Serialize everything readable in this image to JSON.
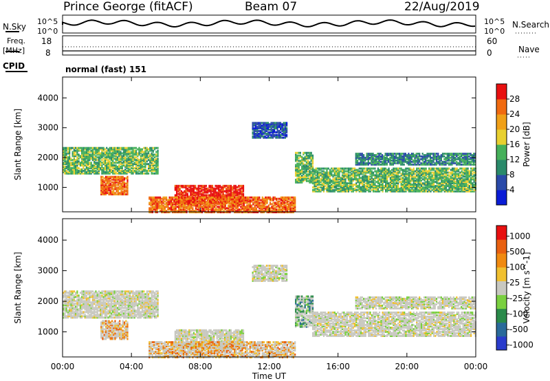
{
  "header": {
    "station": "Prince George (fitACF)",
    "beam": "Beam 07",
    "date": "22/Aug/2019"
  },
  "summary_panels": {
    "nsky_label": "N.Sky",
    "nsearch_label": "N.Search",
    "nsky_ticks": [
      "10^5",
      "10^0"
    ],
    "nsearch_ticks": [
      "10^5",
      "10^0"
    ],
    "freq_label_line1": "Freq.",
    "freq_label_line2": "[MHz]",
    "freq_ticks": [
      "18",
      "8"
    ],
    "nave_label": "Nave",
    "nave_ticks": [
      "60",
      "0"
    ],
    "cpid_label": "CPID",
    "cpid_value": "normal (fast) 151"
  },
  "chart_data": [
    {
      "type": "heatmap",
      "name": "power",
      "ylabel": "Slant Range [km]",
      "xlabel": "Time UT",
      "ylim": [
        180,
        4700
      ],
      "yticks": [
        "1000",
        "2000",
        "3000",
        "4000"
      ],
      "xticks": [
        "00:00",
        "04:00",
        "08:00",
        "12:00",
        "16:00",
        "20:00",
        "00:00"
      ],
      "colorbar": {
        "label": "Power [dB]",
        "ticks": [
          "4",
          "8",
          "12",
          "16",
          "20",
          "24",
          "28"
        ],
        "range": [
          0,
          32
        ],
        "colors": [
          "#0a1cd6",
          "#2a4aa8",
          "#2a8a6a",
          "#46b05a",
          "#e8d030",
          "#f0a018",
          "#f06a10",
          "#e81010"
        ]
      },
      "regions": [
        {
          "t0": 0.0,
          "t1": 5.5,
          "r0": 1500,
          "r1": 2400,
          "level": 14
        },
        {
          "t0": 2.2,
          "t1": 3.8,
          "r0": 800,
          "r1": 1400,
          "level": 26
        },
        {
          "t0": 6.5,
          "t1": 10.5,
          "r0": 500,
          "r1": 1100,
          "level": 28
        },
        {
          "t0": 5.0,
          "t1": 13.5,
          "r0": 200,
          "r1": 700,
          "level": 24
        },
        {
          "t0": 11.0,
          "t1": 13.0,
          "r0": 2700,
          "r1": 3200,
          "level": 6
        },
        {
          "t0": 13.5,
          "t1": 14.5,
          "r0": 1200,
          "r1": 2200,
          "level": 14
        },
        {
          "t0": 14.5,
          "t1": 24.0,
          "r0": 900,
          "r1": 1700,
          "level": 12
        },
        {
          "t0": 17.0,
          "t1": 24.0,
          "r0": 1800,
          "r1": 2200,
          "level": 8
        }
      ]
    },
    {
      "type": "heatmap",
      "name": "velocity",
      "ylabel": "Slant Range [km]",
      "xlabel": "Time UT",
      "ylim": [
        180,
        4700
      ],
      "yticks": [
        "1000",
        "2000",
        "3000",
        "4000"
      ],
      "xticks": [
        "00:00",
        "04:00",
        "08:00",
        "12:00",
        "16:00",
        "20:00",
        "00:00"
      ],
      "colorbar": {
        "label": "Velocity [m s^-1]",
        "ticks": [
          "1000",
          "500",
          "100",
          "25",
          "-25",
          "-100",
          "-500",
          "-1000"
        ],
        "colors": [
          "#2a3ccc",
          "#2a6a9a",
          "#2a8a4a",
          "#7ad040",
          "#c8c8c0",
          "#f0c030",
          "#f08a10",
          "#e86010",
          "#e81010"
        ]
      },
      "regions": [
        {
          "t0": 0.0,
          "t1": 5.5,
          "r0": 1500,
          "r1": 2400,
          "level": 4
        },
        {
          "t0": 2.2,
          "t1": 3.8,
          "r0": 800,
          "r1": 1400,
          "level": 6
        },
        {
          "t0": 6.5,
          "t1": 10.5,
          "r0": 500,
          "r1": 1100,
          "level": 4
        },
        {
          "t0": 5.0,
          "t1": 13.5,
          "r0": 200,
          "r1": 700,
          "level": 6
        },
        {
          "t0": 11.0,
          "t1": 13.0,
          "r0": 2700,
          "r1": 3200,
          "level": 4
        },
        {
          "t0": 13.5,
          "t1": 14.5,
          "r0": 1200,
          "r1": 2200,
          "level": 2
        },
        {
          "t0": 14.5,
          "t1": 24.0,
          "r0": 900,
          "r1": 1700,
          "level": 4
        },
        {
          "t0": 17.0,
          "t1": 24.0,
          "r0": 1800,
          "r1": 2200,
          "level": 4
        }
      ]
    }
  ]
}
